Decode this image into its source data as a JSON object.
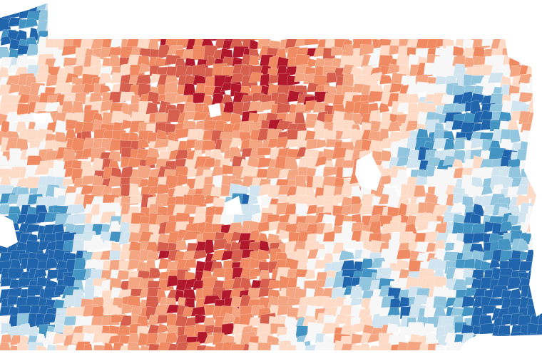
{
  "map": {
    "kind": "precinct choropleth",
    "palette": {
      "red_strong": "#b2182b",
      "red": "#d6604d",
      "red_mid": "#ef8a62",
      "red_light": "#f4a582",
      "pink": "#fddbc7",
      "neutral": "#f7f7f7",
      "blue_light": "#d1e5f0",
      "blue_mid": "#92c5de",
      "blue": "#4393c3",
      "blue_strong": "#2166ac"
    },
    "legend": null
  }
}
